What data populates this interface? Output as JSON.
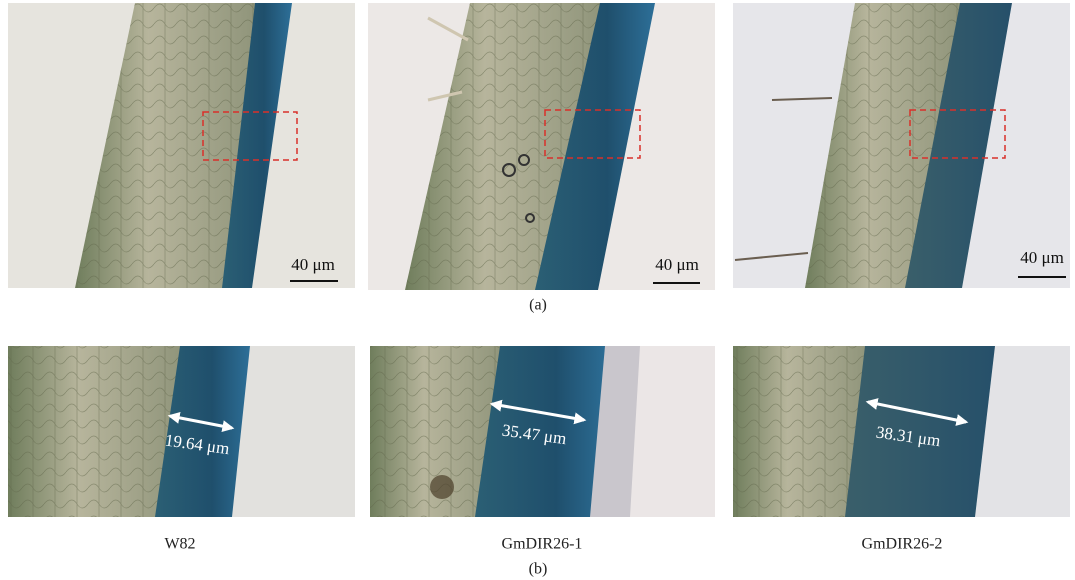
{
  "panels_a": {
    "scale_bars": [
      "40 μm",
      "40 μm",
      "40 μm"
    ],
    "label": "(a)"
  },
  "panels_b": {
    "measurements": [
      "19.64 μm",
      "35.47 μm",
      "38.31 μm"
    ],
    "label": "(b)"
  },
  "samples": [
    "W82",
    "GmDIR26-1",
    "GmDIR26-2"
  ]
}
